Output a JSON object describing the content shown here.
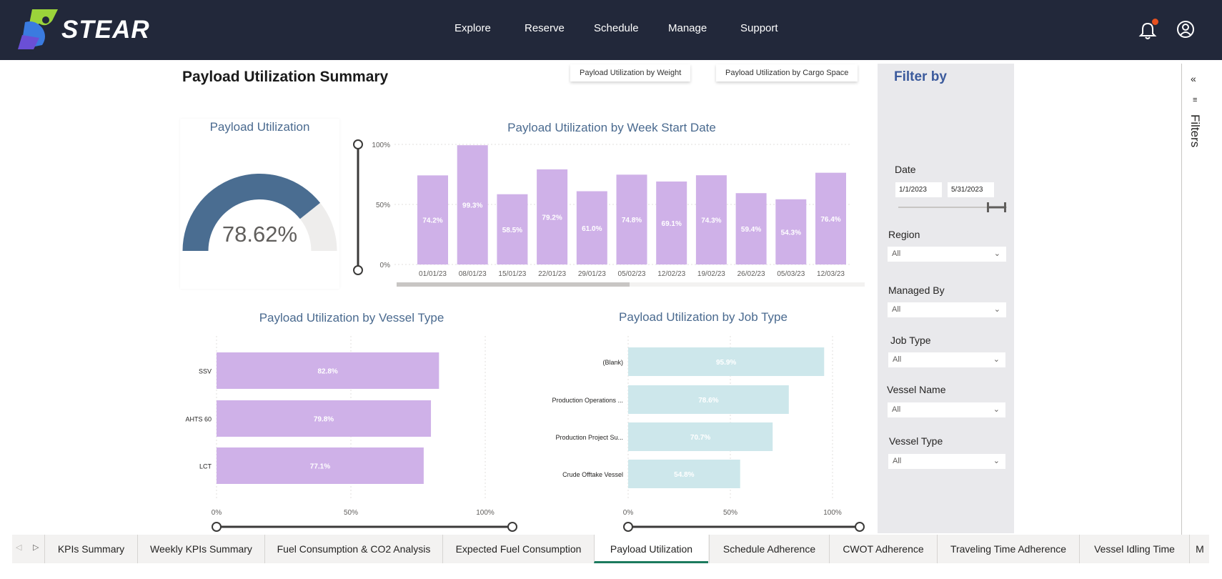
{
  "brand": {
    "name": "STEAR"
  },
  "nav": {
    "items": [
      "Explore",
      "Reserve",
      "Schedule",
      "Manage",
      "Support"
    ]
  },
  "report": {
    "title": "Payload Utilization Summary",
    "toggle_weight": "Payload Utilization by Weight",
    "toggle_space": "Payload Utilization by Cargo Space"
  },
  "gauge": {
    "title": "Payload Utilization",
    "value_label": "78.62%",
    "fraction": 0.7862,
    "fill_color": "#4a6d91",
    "track_color": "#eeedec"
  },
  "chart_data": [
    {
      "type": "bar",
      "title": "Payload Utilization by Week Start Date",
      "categories": [
        "01/01/23",
        "08/01/23",
        "15/01/23",
        "22/01/23",
        "29/01/23",
        "05/02/23",
        "12/02/23",
        "19/02/23",
        "26/02/23",
        "05/03/23",
        "12/03/23"
      ],
      "values": [
        74.2,
        99.3,
        58.5,
        79.2,
        61.0,
        74.8,
        69.1,
        74.3,
        59.4,
        54.3,
        76.4
      ],
      "data_labels": [
        "74.2%",
        "99.3%",
        "58.5%",
        "79.2%",
        "61.0%",
        "74.8%",
        "69.1%",
        "74.3%",
        "59.4%",
        "54.3%",
        "76.4%"
      ],
      "y_ticks": [
        "100%",
        "50%",
        "0%"
      ],
      "ylim": [
        0,
        100
      ],
      "color": "#cfb1e8",
      "grid": true
    },
    {
      "type": "bar",
      "orientation": "horizontal",
      "title": "Payload Utilization by Vessel Type",
      "categories": [
        "SSV",
        "AHTS 60",
        "LCT"
      ],
      "values": [
        82.8,
        79.8,
        77.1
      ],
      "data_labels": [
        "82.8%",
        "79.8%",
        "77.1%"
      ],
      "x_ticks": [
        "0%",
        "50%",
        "100%"
      ],
      "xlim": [
        0,
        100
      ],
      "color": "#cfb1e8",
      "grid": true
    },
    {
      "type": "bar",
      "orientation": "horizontal",
      "title": "Payload Utilization by Job Type",
      "categories": [
        "(Blank)",
        "Production Operations ...",
        "Production Project Su...",
        "Crude Offtake Vessel"
      ],
      "values": [
        95.9,
        78.6,
        70.7,
        54.8
      ],
      "data_labels": [
        "95.9%",
        "78.6%",
        "70.7%",
        "54.8%"
      ],
      "x_ticks": [
        "0%",
        "50%",
        "100%"
      ],
      "xlim": [
        0,
        100
      ],
      "color": "#cde7eb",
      "grid": true
    }
  ],
  "filters": {
    "title": "Filter by",
    "date_label": "Date",
    "date_start": "1/1/2023",
    "date_end": "5/31/2023",
    "region_label": "Region",
    "region_value": "All",
    "managed_label": "Managed By",
    "managed_value": "All",
    "job_label": "Job Type",
    "job_value": "All",
    "vessel_name_label": "Vessel Name",
    "vessel_name_value": "All",
    "vessel_type_label": "Vessel Type",
    "vessel_type_value": "All",
    "pane_label": "Filters"
  },
  "tabs": [
    "KPIs Summary",
    "Weekly KPIs Summary",
    "Fuel Consumption & CO2 Analysis",
    "Expected Fuel Consumption",
    "Payload Utilization",
    "Schedule Adherence",
    "CWOT Adherence",
    "Traveling Time Adherence",
    "Vessel Idling Time",
    "M"
  ],
  "active_tab": "Payload Utilization",
  "colors": {
    "nav_bg": "#22283a",
    "accent_title": "#4a6a8f",
    "active_tab_underline": "#1c7a5e"
  }
}
